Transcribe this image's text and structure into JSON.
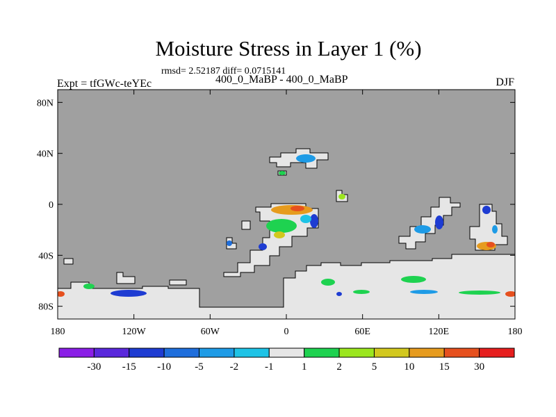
{
  "title": "Moisture Stress in Layer 1 (%)",
  "stats": "rmsd= 2.52187 diff= 0.0715141",
  "experiment": "Expt = tfGWc-teYEc",
  "case_label": "400_0_MaBP - 400_0_MaBP",
  "season": "DJF",
  "y_ticks": [
    {
      "label": "80N",
      "lat": 80
    },
    {
      "label": "40N",
      "lat": 40
    },
    {
      "label": "0",
      "lat": 0
    },
    {
      "label": "40S",
      "lat": -40
    },
    {
      "label": "80S",
      "lat": -80
    }
  ],
  "x_ticks": [
    {
      "label": "180",
      "lon": -180
    },
    {
      "label": "120W",
      "lon": -120
    },
    {
      "label": "60W",
      "lon": -60
    },
    {
      "label": "0",
      "lon": 0
    },
    {
      "label": "60E",
      "lon": 60
    },
    {
      "label": "120E",
      "lon": 120
    },
    {
      "label": "180",
      "lon": 180
    }
  ],
  "colorbar": {
    "colors": [
      "#8a1ee6",
      "#5a28dc",
      "#1e3cd2",
      "#1e6edc",
      "#1e9be6",
      "#1ec3e6",
      "#e6e6e6",
      "#1ed250",
      "#9be61e",
      "#d2c81e",
      "#e69b1e",
      "#e6501e",
      "#e61e1e"
    ],
    "labels": [
      "-30",
      "-15",
      "-10",
      "-5",
      "-2",
      "-1",
      "1",
      "2",
      "5",
      "10",
      "15",
      "30"
    ]
  },
  "colors": {
    "ocean": "#a0a0a0",
    "land_neutral": "#e6e6e6"
  }
}
